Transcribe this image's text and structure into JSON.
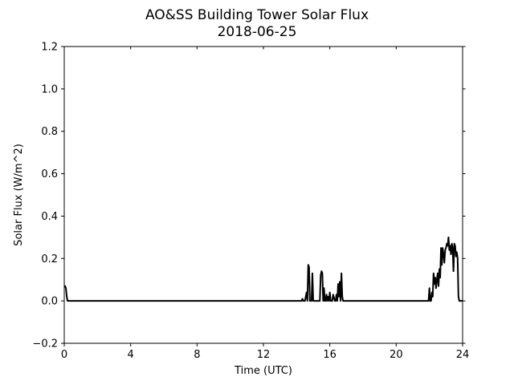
{
  "chart_data": {
    "type": "line",
    "title": "AO&SS Building Tower Solar Flux",
    "subtitle": "2018-06-25",
    "xlabel": "Time (UTC)",
    "ylabel": "Solar Flux (W/m^2)",
    "xlim": [
      0,
      24
    ],
    "ylim": [
      -0.2,
      1.2
    ],
    "xticks": [
      0,
      4,
      8,
      12,
      16,
      20,
      24
    ],
    "xtick_labels": [
      "0",
      "4",
      "8",
      "12",
      "16",
      "20",
      "24"
    ],
    "yticks": [
      -0.2,
      0.0,
      0.2,
      0.4,
      0.6,
      0.8,
      1.0,
      1.2
    ],
    "ytick_labels": [
      "−0.2",
      "0.0",
      "0.2",
      "0.4",
      "0.6",
      "0.8",
      "1.0",
      "1.2"
    ],
    "grid": false,
    "line_color": "#000000",
    "series": [
      {
        "x": [
          0.0,
          0.05,
          0.1,
          0.15,
          0.2,
          0.25,
          14.2,
          14.3,
          14.35,
          14.4,
          14.5,
          14.6,
          14.65,
          14.7,
          14.75,
          14.8,
          14.85,
          14.9,
          14.95,
          15.0,
          15.05,
          15.4,
          15.45,
          15.5,
          15.55,
          15.6,
          15.65,
          15.7,
          15.75,
          15.8,
          15.85,
          15.9,
          15.95,
          16.0,
          16.05,
          16.1,
          16.15,
          16.2,
          16.3,
          16.35,
          16.4,
          16.45,
          16.5,
          16.55,
          16.6,
          16.65,
          16.7,
          16.75,
          16.8,
          16.85,
          16.9,
          21.9,
          21.95,
          22.0,
          22.05,
          22.1,
          22.15,
          22.2,
          22.25,
          22.3,
          22.35,
          22.4,
          22.45,
          22.5,
          22.55,
          22.6,
          22.65,
          22.7,
          22.75,
          22.8,
          22.85,
          22.9,
          22.95,
          23.0,
          23.05,
          23.1,
          23.15,
          23.2,
          23.25,
          23.3,
          23.35,
          23.4,
          23.45,
          23.5,
          23.55,
          23.6,
          23.65,
          23.7,
          23.75,
          23.8,
          23.85,
          23.9,
          24.0
        ],
        "y": [
          0.07,
          0.07,
          0.06,
          0.02,
          0.0,
          0.0,
          0.0,
          0.0,
          0.01,
          0.0,
          0.0,
          0.04,
          0.0,
          0.17,
          0.16,
          0.0,
          0.0,
          0.0,
          0.13,
          0.0,
          0.0,
          0.0,
          0.12,
          0.14,
          0.13,
          0.0,
          0.06,
          0.0,
          0.0,
          0.03,
          0.0,
          0.02,
          0.0,
          0.04,
          0.0,
          0.0,
          0.0,
          0.03,
          0.0,
          0.0,
          0.03,
          0.0,
          0.08,
          0.02,
          0.09,
          0.0,
          0.13,
          0.02,
          0.0,
          0.0,
          0.0,
          0.0,
          0.0,
          0.06,
          0.0,
          0.0,
          0.04,
          0.02,
          0.13,
          0.08,
          0.11,
          0.06,
          0.1,
          0.13,
          0.07,
          0.15,
          0.11,
          0.25,
          0.17,
          0.25,
          0.22,
          0.18,
          0.24,
          0.25,
          0.27,
          0.26,
          0.3,
          0.24,
          0.26,
          0.22,
          0.27,
          0.25,
          0.14,
          0.27,
          0.26,
          0.21,
          0.23,
          0.2,
          0.02,
          0.0,
          0.0,
          0.0,
          0.0
        ]
      }
    ]
  }
}
